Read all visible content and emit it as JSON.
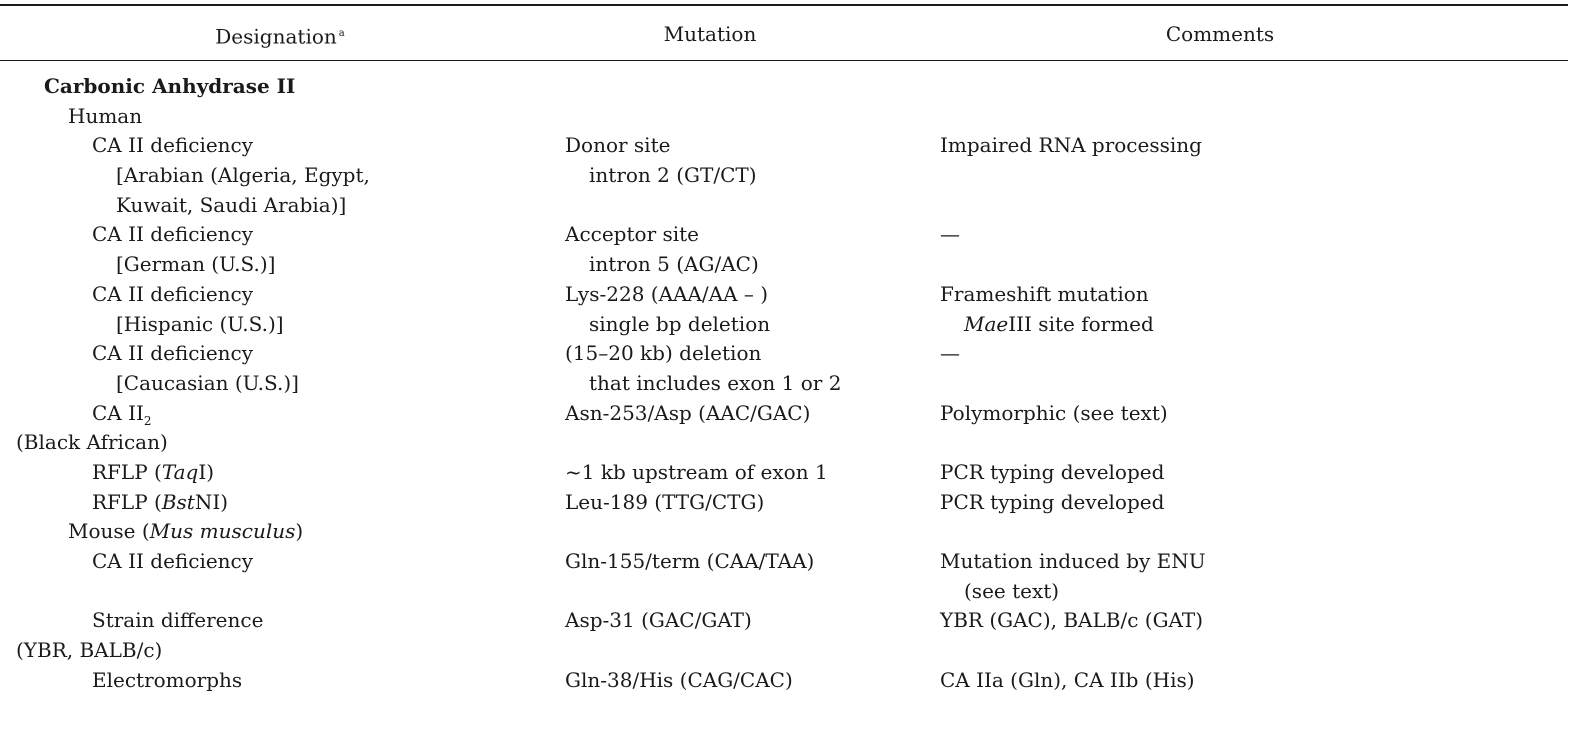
{
  "header": {
    "designation": "Designation",
    "designation_note": "a",
    "mutation": "Mutation",
    "comments": "Comments"
  },
  "section": "Carbonic Anhydrase II",
  "human": {
    "label": "Human",
    "r1": {
      "d1": "CA II deficiency",
      "d2": "[Arabian (Algeria, Egypt,",
      "d3": "Kuwait, Saudi Arabia)]",
      "m1": "Donor site",
      "m2": "intron 2 (GT/CT)",
      "c1": "Impaired RNA processing"
    },
    "r2": {
      "d1": "CA II deficiency",
      "d2": "[German (U.S.)]",
      "m1": "Acceptor site",
      "m2": "intron 5 (AG/AC)",
      "c1": "—"
    },
    "r3": {
      "d1": "CA II deficiency",
      "d2": "[Hispanic (U.S.)]",
      "m1": "Lys-228 (AAA/AA – )",
      "m2": "single bp deletion",
      "c1": "Frameshift mutation",
      "c2_ital": "Mae",
      "c2_rest": "III site formed"
    },
    "r4": {
      "d1": "CA II deficiency",
      "d2": "[Caucasian (U.S.)]",
      "m1": "(15–20 kb) deletion",
      "m2": "that includes exon 1 or 2",
      "c1": "—"
    },
    "r5": {
      "d1_main": "CA II",
      "d1_sub": "2",
      "d2": "(Black African)",
      "m1": "Asn-253/Asp (AAC/GAC)",
      "c1": "Polymorphic (see text)"
    },
    "r6": {
      "d1_pre": "RFLP (",
      "d1_ital": "Taq",
      "d1_post": "I)",
      "m1": "~1 kb upstream of exon 1",
      "c1": "PCR typing developed"
    },
    "r7": {
      "d1_pre": "RFLP (",
      "d1_ital": "Bst",
      "d1_post": "NI)",
      "m1": "Leu-189 (TTG/CTG)",
      "c1": "PCR typing developed"
    }
  },
  "mouse": {
    "label_pre": "Mouse (",
    "label_ital": "Mus musculus",
    "label_post": ")",
    "r1": {
      "d1": "CA II deficiency",
      "m1": "Gln-155/term (CAA/TAA)",
      "c1": "Mutation induced by ENU",
      "c2": "(see text)"
    },
    "r2": {
      "d1": "Strain difference",
      "d2": "(YBR, BALB/c)",
      "m1": "Asp-31 (GAC/GAT)",
      "c1": "YBR (GAC), BALB/c (GAT)"
    },
    "r3": {
      "d1": "Electromorphs",
      "m1": "Gln-38/His (CAG/CAC)",
      "c1": "CA IIa (Gln), CA IIb (His)"
    }
  }
}
